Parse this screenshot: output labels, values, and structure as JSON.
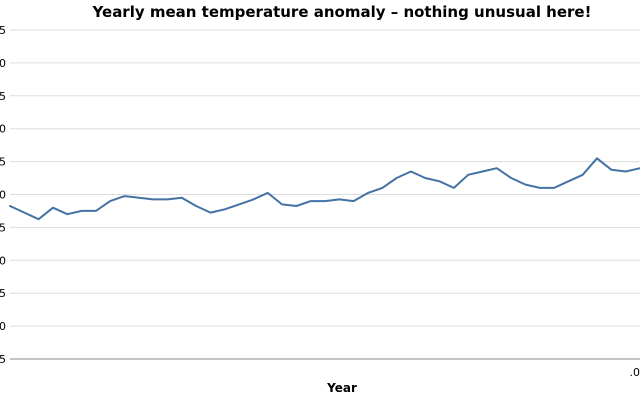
{
  "chart_data": {
    "type": "line",
    "title": "Yearly mean temperature anomaly – nothing unusual here!",
    "xlabel": "Year",
    "ylabel": "",
    "ylim": [
      0,
      10
    ],
    "y_ticks": [
      0,
      1,
      2,
      3,
      4,
      5,
      6,
      7,
      8,
      9,
      10
    ],
    "y_tick_labels": [
      "5",
      "0",
      "5",
      "0",
      "5",
      "0",
      "5",
      "0",
      "5",
      "0",
      "5"
    ],
    "x_tick_labels": [
      ".0"
    ],
    "grid": "horizontal",
    "color": "#4472a4",
    "x": [
      0,
      0.5,
      1,
      1.5,
      2,
      2.5,
      3,
      3.5,
      4,
      4.5,
      5,
      5.5,
      6,
      6.5,
      7,
      7.5,
      8,
      8.5,
      9,
      9.5,
      10,
      10.5,
      11,
      11.5,
      12,
      12.5,
      13,
      13.5,
      14,
      14.5,
      15,
      15.5,
      16,
      16.5,
      17,
      17.5,
      18,
      18.5,
      19,
      19.5,
      20,
      20.5,
      21,
      21.5,
      22
    ],
    "y": [
      4.65,
      4.45,
      4.25,
      4.6,
      4.4,
      4.5,
      4.5,
      4.8,
      4.95,
      4.9,
      4.85,
      4.85,
      4.9,
      4.65,
      4.45,
      4.55,
      4.7,
      4.85,
      5.05,
      4.7,
      4.65,
      4.8,
      4.8,
      4.85,
      4.8,
      5.05,
      5.2,
      5.5,
      5.7,
      5.5,
      5.4,
      5.2,
      5.6,
      5.7,
      5.8,
      5.5,
      5.3,
      5.2,
      5.2,
      5.4,
      5.6,
      6.1,
      5.75,
      5.7,
      5.8
    ]
  }
}
